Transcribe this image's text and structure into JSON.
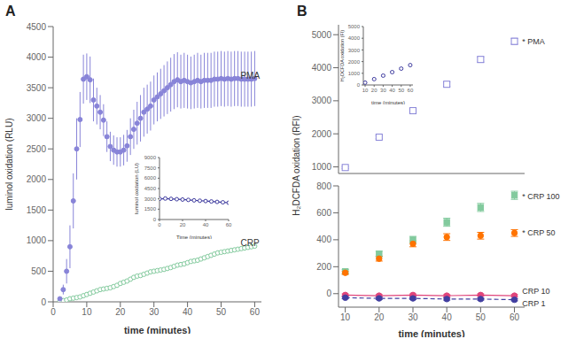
{
  "chart_data": [
    {
      "type": "scatter",
      "title": "A",
      "xlabel": "time (minutes)",
      "ylabel": "luminol oxidation (RLU)",
      "x": [
        2,
        3,
        4,
        5,
        6,
        7,
        8,
        9,
        10,
        11,
        12,
        13,
        14,
        15,
        16,
        17,
        18,
        19,
        20,
        21,
        22,
        23,
        24,
        25,
        26,
        27,
        28,
        29,
        30,
        31,
        32,
        33,
        34,
        35,
        36,
        37,
        38,
        39,
        40,
        41,
        42,
        43,
        44,
        45,
        46,
        47,
        48,
        49,
        50,
        51,
        52,
        53,
        54,
        55,
        56,
        57,
        58,
        59,
        60
      ],
      "xlim": [
        0,
        62
      ],
      "xticks": [
        0,
        10,
        20,
        30,
        40,
        50,
        60
      ],
      "ylim": [
        0,
        4500
      ],
      "yticks": [
        0,
        500,
        1000,
        1500,
        2000,
        2500,
        3000,
        3500,
        4000,
        4500
      ],
      "series": [
        {
          "values": [
            10,
            20,
            30,
            50,
            60,
            70,
            80,
            100,
            120,
            140,
            160,
            180,
            200,
            210,
            220,
            230,
            250,
            270,
            300,
            320,
            340,
            370,
            400,
            420,
            430,
            450,
            470,
            490,
            500,
            510,
            520,
            530,
            545,
            560,
            580,
            600,
            610,
            620,
            640,
            660,
            670,
            680,
            700,
            720,
            740,
            760,
            780,
            800,
            810,
            820,
            830,
            840,
            850,
            860,
            870,
            880,
            890,
            900,
            910
          ],
          "errors": [
            5,
            5,
            5,
            8,
            8,
            8,
            8,
            8,
            10,
            10,
            10,
            10,
            10,
            10,
            10,
            10,
            12,
            12,
            12,
            15,
            15,
            15,
            20,
            20,
            20,
            20,
            20,
            20,
            20,
            20,
            20,
            20,
            20,
            20,
            20,
            25,
            25,
            25,
            25,
            25,
            25,
            25,
            25,
            30,
            30,
            30,
            30,
            30,
            30,
            30,
            30,
            30,
            30,
            30,
            30,
            30,
            30,
            30,
            30
          ],
          "marker": "open circle",
          "line_style": "none"
        },
        {
          "values": [
            50,
            200,
            500,
            900,
            1650,
            2500,
            2980,
            3640,
            3680,
            3630,
            3300,
            3200,
            3100,
            2970,
            2700,
            2540,
            2480,
            2450,
            2450,
            2480,
            2550,
            2700,
            2820,
            2920,
            3000,
            3100,
            3150,
            3200,
            3300,
            3350,
            3400,
            3450,
            3500,
            3550,
            3600,
            3630,
            3600,
            3620,
            3600,
            3580,
            3600,
            3620,
            3600,
            3620,
            3620,
            3620,
            3640,
            3640,
            3650,
            3640,
            3650,
            3640,
            3650,
            3650,
            3640,
            3640,
            3640,
            3640,
            3650
          ],
          "errors": [
            20,
            80,
            200,
            350,
            450,
            500,
            450,
            400,
            380,
            380,
            350,
            300,
            280,
            260,
            250,
            240,
            240,
            240,
            240,
            250,
            260,
            300,
            320,
            350,
            380,
            400,
            400,
            400,
            400,
            400,
            410,
            420,
            430,
            440,
            450,
            450,
            440,
            450,
            440,
            430,
            440,
            450,
            440,
            450,
            450,
            450,
            450,
            450,
            450,
            450,
            450,
            450,
            450,
            450,
            450,
            450,
            450,
            450,
            450
          ],
          "marker": "filled circle",
          "line_style": "none"
        }
      ],
      "annotations": [
        {
          "text": "PMA",
          "x": 55,
          "y": 3700
        },
        {
          "text": "CRP",
          "x": 55,
          "y": 960
        }
      ]
    },
    {
      "type": "line",
      "xlabel": "Time (minutes)",
      "ylabel": "luminol oxidation (LU)",
      "x": [
        0,
        5,
        10,
        15,
        20,
        25,
        30,
        35,
        40,
        45,
        50,
        55,
        60
      ],
      "xlim": [
        0,
        60
      ],
      "xticks": [
        0,
        20,
        40,
        60
      ],
      "ylim": [
        0,
        9000
      ],
      "yticks": [
        0,
        1500,
        3000,
        4500,
        6000,
        7500,
        9000
      ],
      "series": [
        {
          "values": [
            3000,
            3050,
            3000,
            2950,
            2900,
            2850,
            2780,
            2730,
            2680,
            2620,
            2560,
            2500,
            2440
          ],
          "marker": "open circle",
          "line_style": "solid"
        }
      ]
    },
    {
      "type": "scatter",
      "title": "B",
      "ylabel": "H₂DCFDA oxidation (RFI)",
      "x": [
        10,
        20,
        30,
        40,
        50,
        60
      ],
      "xlim": [
        8,
        63
      ],
      "ylim": [
        800,
        5300
      ],
      "yticks": [
        1000,
        2000,
        3000,
        4000,
        5000
      ],
      "tick_labels": "y",
      "series": [
        {
          "values": [
            980,
            1900,
            2700,
            3500,
            4250,
            4800
          ],
          "errors": [
            30,
            50,
            60,
            70,
            80,
            90
          ],
          "marker": "open square",
          "line_style": "none"
        }
      ],
      "annotations": [
        {
          "text": "* PMA",
          "x": 61.5,
          "y": 4800
        }
      ]
    },
    {
      "type": "scatter",
      "xlabel": "time (minutes)",
      "x": [
        10,
        20,
        30,
        40,
        50,
        60
      ],
      "xlim": [
        8,
        63
      ],
      "xticks": [
        10,
        20,
        30,
        40,
        50,
        60
      ],
      "ylim": [
        -100,
        800
      ],
      "yticks": [
        0,
        200,
        400,
        600,
        800
      ],
      "series": [
        {
          "values": [
            165,
            295,
            400,
            530,
            640,
            730
          ],
          "errors": [
            15,
            20,
            25,
            30,
            30,
            30
          ],
          "marker": "filled square",
          "line_style": "none"
        },
        {
          "values": [
            155,
            260,
            370,
            420,
            430,
            450
          ],
          "errors": [
            12,
            18,
            22,
            25,
            25,
            25
          ],
          "marker": "filled circle",
          "line_style": "none"
        },
        {
          "values": [
            -10,
            -15,
            -10,
            -15,
            -10,
            -15
          ],
          "errors": [
            8,
            8,
            8,
            8,
            8,
            8
          ],
          "marker": "filled circle",
          "line_style": "solid"
        },
        {
          "values": [
            -30,
            -35,
            -35,
            -40,
            -40,
            -45
          ],
          "errors": [
            8,
            8,
            8,
            8,
            8,
            8
          ],
          "marker": "filled circle",
          "line_style": "dashed"
        }
      ],
      "annotations": [
        {
          "text": "* CRP 100",
          "x": 61.5,
          "y": 720
        },
        {
          "text": "* CRP 50",
          "x": 61.5,
          "y": 450
        },
        {
          "text": "CRP 10",
          "x": 61.5,
          "y": -5
        },
        {
          "text": "CRP 1",
          "x": 61.5,
          "y": -48
        }
      ]
    },
    {
      "type": "scatter",
      "xlabel": "time (minutes)",
      "ylabel": "H₂DCFDA oxidation (FI)",
      "x": [
        10,
        20,
        30,
        40,
        50,
        60
      ],
      "xlim": [
        8,
        63
      ],
      "xticks": [
        10,
        20,
        30,
        40,
        50,
        60
      ],
      "ylim": [
        0,
        5000
      ],
      "yticks": [
        0,
        1000,
        2000,
        3000,
        4000,
        5000
      ],
      "series": [
        {
          "values": [
            200,
            500,
            800,
            1100,
            1400,
            1700
          ],
          "errors": [
            20,
            30,
            40,
            50,
            60,
            70
          ],
          "marker": "open circle",
          "line_style": "none"
        }
      ]
    }
  ]
}
